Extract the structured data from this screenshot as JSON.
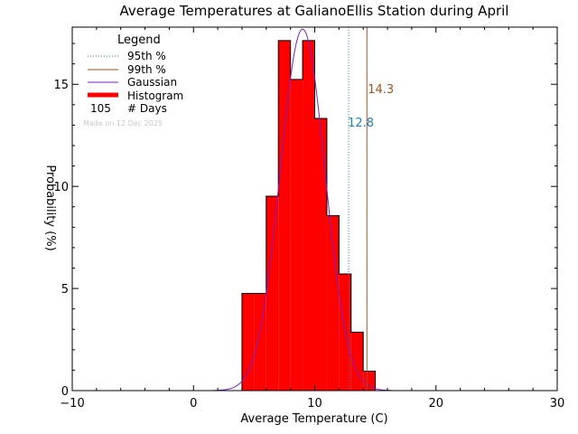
{
  "chart_data": {
    "type": "bar",
    "title": "Average Temperatures at GalianoEllis Station during April",
    "xlabel": "Average Temperature (C)",
    "ylabel": "Probability (%)",
    "xlim": [
      -10,
      30
    ],
    "ylim": [
      0,
      17.8
    ],
    "x_ticks": [
      "−10",
      "0",
      "10",
      "20",
      "30"
    ],
    "x_tick_values": [
      -10,
      0,
      10,
      20,
      30
    ],
    "y_ticks": [
      "0",
      "5",
      "10",
      "15"
    ],
    "y_tick_values": [
      0,
      5,
      10,
      15
    ],
    "bin_edges": [
      4,
      5,
      6,
      7,
      8,
      9,
      10,
      11,
      12,
      13,
      14,
      15
    ],
    "values": [
      4.76,
      4.76,
      9.52,
      17.14,
      15.24,
      17.14,
      13.33,
      8.57,
      5.71,
      2.86,
      0.95
    ],
    "gaussian": {
      "mean": 9.0,
      "sigma": 1.85,
      "peak": 17.7,
      "range": [
        1.6,
        16.4
      ]
    },
    "percentiles": [
      {
        "name": "95th %",
        "value": 12.8,
        "label": "12.8",
        "color": "#1f7fbf",
        "style": "dotted"
      },
      {
        "name": "99th %",
        "value": 14.3,
        "label": "14.3",
        "color": "#a0521e",
        "style": "solid"
      }
    ],
    "legend": {
      "title": "Legend",
      "items": [
        {
          "label": "95th %",
          "color": "#1f7fbf",
          "style": "dotted"
        },
        {
          "label": "99th %",
          "color": "#a0521e",
          "style": "solid"
        },
        {
          "label": "Gaussian",
          "color": "#7f1fbf",
          "style": "solid"
        },
        {
          "label": "Histogram",
          "color": "#ff0000",
          "style": "thick"
        }
      ],
      "days_count": "105",
      "days_label": "# Days",
      "placement": "top-left"
    },
    "made_on": "Made on 12 Dec 2025",
    "colors": {
      "histogram": "#ff0000",
      "gaussian": "#7f1fbf"
    }
  }
}
